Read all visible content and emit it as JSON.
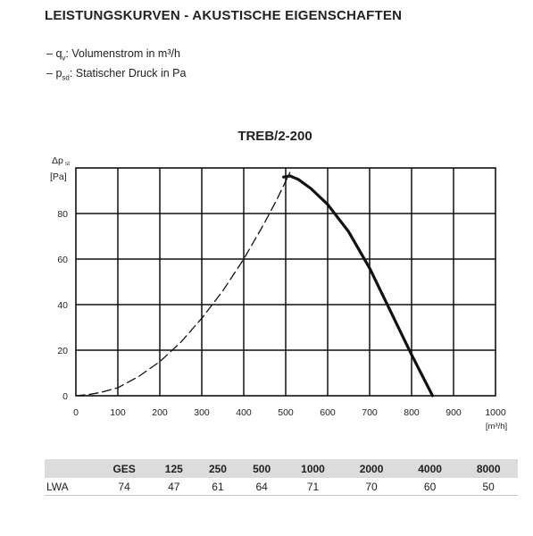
{
  "heading": "LEISTUNGSKURVEN - AKUSTISCHE EIGENSCHAFTEN",
  "legend": {
    "qv_symbol": "q",
    "qv_sub": "v",
    "qv_text": ": Volumenstrom in m³/h",
    "psd_symbol": "p",
    "psd_sub": "sd",
    "psd_text": ": Statischer Druck in Pa"
  },
  "chart_data": {
    "type": "line",
    "title": "TREB/2-200",
    "ylabel_symbol": "Δp",
    "ylabel_sub": "st",
    "ylabel_unit": "[Pa]",
    "xlabel_unit": "[m³/h]",
    "xlim": [
      0,
      1000
    ],
    "ylim": [
      0,
      100
    ],
    "xticks": [
      0,
      100,
      200,
      300,
      400,
      500,
      600,
      700,
      800,
      900,
      1000
    ],
    "yticks": [
      0,
      20,
      40,
      60,
      80
    ],
    "grid": true,
    "series": [
      {
        "style": "dashed",
        "x": [
          0,
          30,
          60,
          100,
          150,
          200,
          250,
          300,
          350,
          400,
          450,
          480,
          510
        ],
        "y": [
          0,
          0.5,
          1.5,
          3.5,
          8.5,
          15,
          23.5,
          34,
          46,
          60,
          76,
          86.5,
          98
        ]
      },
      {
        "style": "solid",
        "x": [
          495,
          510,
          530,
          560,
          600,
          650,
          700,
          750,
          800,
          850
        ],
        "y": [
          96,
          96.5,
          95,
          91,
          84,
          72,
          56,
          37,
          18,
          0
        ]
      }
    ]
  },
  "table": {
    "headers": [
      "",
      "GES",
      "125",
      "250",
      "500",
      "1000",
      "2000",
      "4000",
      "8000"
    ],
    "row_label": "LWA",
    "values": [
      "74",
      "47",
      "61",
      "64",
      "71",
      "70",
      "60",
      "50"
    ]
  }
}
